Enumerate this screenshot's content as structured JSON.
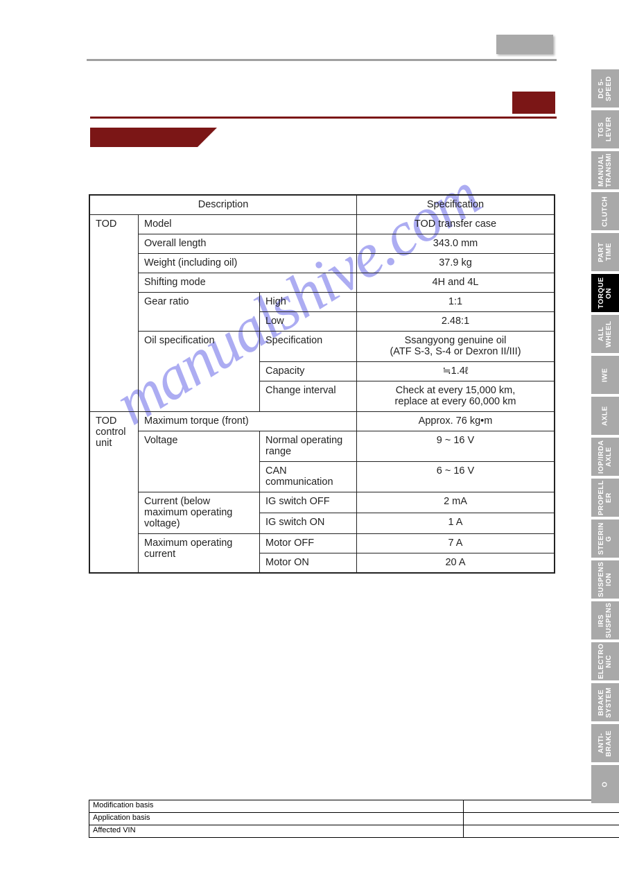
{
  "watermark": "manualshive.com",
  "table": {
    "head_desc": "Description",
    "head_spec": "Specification",
    "groups": [
      {
        "group": "TOD",
        "rows": [
          {
            "label": "Model",
            "sub": null,
            "spec": "TOD transfer case"
          },
          {
            "label": "Overall length",
            "sub": null,
            "spec": "343.0 mm"
          },
          {
            "label": "Weight (including oil)",
            "sub": null,
            "spec": "37.9 kg"
          },
          {
            "label": "Shifting mode",
            "sub": null,
            "spec": "4H and 4L"
          },
          {
            "label": "Gear ratio",
            "sub": "High",
            "spec": "1:1"
          },
          {
            "label": null,
            "sub": "Low",
            "spec": "2.48:1"
          },
          {
            "label": "Oil specification",
            "sub": "Specification",
            "spec": "Ssangyong genuine oil\n(ATF S-3, S-4 or Dexron II/III)"
          },
          {
            "label": null,
            "sub": "Capacity",
            "spec": "≒1.4ℓ"
          },
          {
            "label": null,
            "sub": "Change interval",
            "spec": "Check at every 15,000 km,\nreplace at every 60,000 km"
          }
        ]
      },
      {
        "group": "TOD control unit",
        "rows": [
          {
            "label": "Maximum torque (front)",
            "sub": null,
            "spec": "Approx. 76 kg•m"
          },
          {
            "label": "Voltage",
            "sub": "Normal operating range",
            "spec": "9 ~ 16 V"
          },
          {
            "label": null,
            "sub": "CAN communication",
            "spec": "6 ~ 16 V"
          },
          {
            "label": "Current (below maximum operating voltage)",
            "sub": "IG switch OFF",
            "spec": "2 mA"
          },
          {
            "label": null,
            "sub": "IG switch ON",
            "spec": "1 A"
          },
          {
            "label": "Maximum operating current",
            "sub": "Motor OFF",
            "spec": "7 A"
          },
          {
            "label": null,
            "sub": "Motor ON",
            "spec": "20 A"
          }
        ]
      }
    ]
  },
  "mod": {
    "r1": "Modification basis",
    "r2": "Application basis",
    "r3": "Affected VIN"
  },
  "sidebar": [
    {
      "label": "DC 5-\nSPEED",
      "active": false
    },
    {
      "label": "TGS\nLEVER",
      "active": false
    },
    {
      "label": "MANUAL\nTRANSMI",
      "active": false
    },
    {
      "label": "CLUTCH",
      "active": false
    },
    {
      "label": "PART\nTIME",
      "active": false
    },
    {
      "label": "TORQUE\nON",
      "active": true
    },
    {
      "label": "ALL\nWHEEL",
      "active": false
    },
    {
      "label": "IWE",
      "active": false
    },
    {
      "label": "AXLE",
      "active": false
    },
    {
      "label": "IOP/IRDA\nAXLE",
      "active": false
    },
    {
      "label": "PROPELL\nER",
      "active": false
    },
    {
      "label": "STEERIN\nG",
      "active": false
    },
    {
      "label": "SUSPENS\nION",
      "active": false
    },
    {
      "label": "IRS\nSUSPENS",
      "active": false
    },
    {
      "label": "ELECTRO\nNIC",
      "active": false
    },
    {
      "label": "BRAKE\nSYSTEM",
      "active": false
    },
    {
      "label": "ANTI-\nBRAKE",
      "active": false
    },
    {
      "label": "O",
      "active": false
    }
  ]
}
